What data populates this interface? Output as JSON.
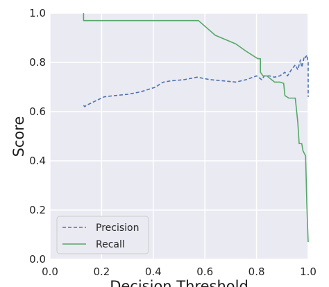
{
  "chart_data": {
    "type": "line",
    "title": "",
    "xlabel": "Decision Threshold",
    "ylabel": "Score",
    "xlim": [
      0.0,
      1.0
    ],
    "ylim": [
      0.0,
      1.0
    ],
    "xticks": [
      "0.0",
      "0.2",
      "0.4",
      "0.6",
      "0.8",
      "1.0"
    ],
    "yticks": [
      "0.0",
      "0.2",
      "0.4",
      "0.6",
      "0.8",
      "1.0"
    ],
    "grid": true,
    "legend_position": "lower-left",
    "background_color": "#eaeaf2",
    "series": [
      {
        "name": "Precision",
        "color": "#4c72b0",
        "style": "dashed",
        "x": [
          0.13,
          0.135,
          0.14,
          0.17,
          0.21,
          0.25,
          0.3,
          0.35,
          0.38,
          0.41,
          0.43,
          0.44,
          0.47,
          0.52,
          0.57,
          0.62,
          0.67,
          0.72,
          0.76,
          0.8,
          0.82,
          0.83,
          0.85,
          0.87,
          0.89,
          0.91,
          0.92,
          0.935,
          0.95,
          0.96,
          0.97,
          0.975,
          0.98,
          0.985,
          0.99,
          0.995,
          1.0,
          1.0
        ],
        "y": [
          0.625,
          0.62,
          0.625,
          0.64,
          0.66,
          0.665,
          0.67,
          0.68,
          0.69,
          0.7,
          0.715,
          0.72,
          0.725,
          0.73,
          0.74,
          0.73,
          0.725,
          0.72,
          0.73,
          0.745,
          0.73,
          0.745,
          0.745,
          0.74,
          0.745,
          0.76,
          0.745,
          0.77,
          0.79,
          0.77,
          0.81,
          0.78,
          0.8,
          0.825,
          0.82,
          0.83,
          0.8,
          0.66
        ]
      },
      {
        "name": "Recall",
        "color": "#55a868",
        "style": "solid",
        "x": [
          0.13,
          0.13,
          0.575,
          0.64,
          0.72,
          0.76,
          0.805,
          0.815,
          0.815,
          0.825,
          0.84,
          0.87,
          0.89,
          0.905,
          0.91,
          0.925,
          0.95,
          0.96,
          0.965,
          0.975,
          0.98,
          0.99,
          0.995,
          1.0
        ],
        "y": [
          1.0,
          0.97,
          0.97,
          0.91,
          0.875,
          0.845,
          0.815,
          0.815,
          0.76,
          0.745,
          0.745,
          0.72,
          0.72,
          0.715,
          0.665,
          0.655,
          0.655,
          0.555,
          0.47,
          0.47,
          0.44,
          0.42,
          0.22,
          0.07
        ]
      }
    ]
  }
}
